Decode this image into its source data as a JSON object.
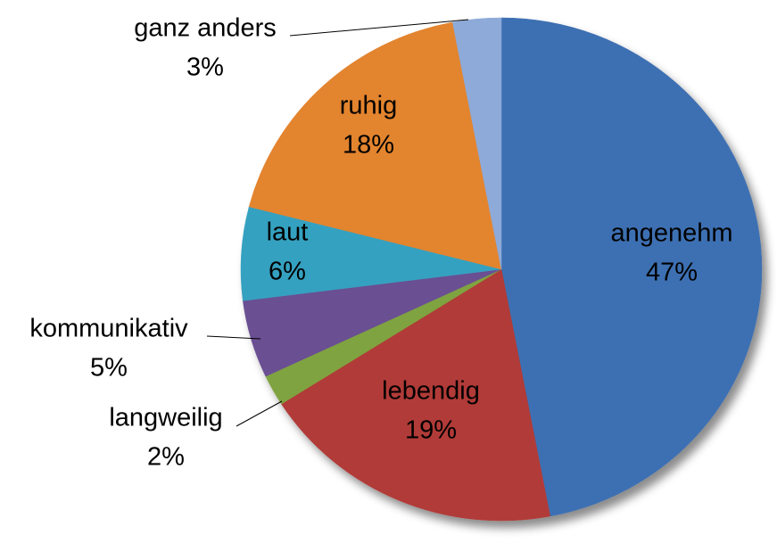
{
  "chart_data": {
    "type": "pie",
    "categories": [
      "angenehm",
      "lebendig",
      "langweilig",
      "kommunikativ",
      "laut",
      "ruhig",
      "ganz anders"
    ],
    "values": [
      47,
      19,
      2,
      5,
      6,
      18,
      3
    ],
    "value_labels": [
      "47%",
      "19%",
      "2%",
      "5%",
      "6%",
      "18%",
      "3%"
    ],
    "colors": [
      "#3e6fb2",
      "#b13b37",
      "#7fa33f",
      "#6b4f93",
      "#36a1c0",
      "#e3842f",
      "#8eaad8"
    ]
  }
}
